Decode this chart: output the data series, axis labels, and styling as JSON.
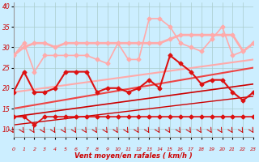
{
  "xlabel": "Vent moyen/en rafales ( km/h )",
  "background_color": "#cceeff",
  "grid_color": "#aacccc",
  "xlim": [
    0,
    23
  ],
  "ylim": [
    8,
    41
  ],
  "yticks": [
    10,
    15,
    20,
    25,
    30,
    35,
    40
  ],
  "xticks": [
    0,
    1,
    2,
    3,
    4,
    5,
    6,
    7,
    8,
    9,
    10,
    11,
    12,
    13,
    14,
    15,
    16,
    17,
    18,
    19,
    20,
    21,
    22,
    23
  ],
  "line_pink_flat": {
    "x": [
      0,
      1,
      2,
      3,
      4,
      5,
      6,
      7,
      8,
      9,
      10,
      11,
      12,
      13,
      14,
      15,
      16,
      17,
      18,
      19,
      20,
      21,
      22,
      23
    ],
    "y": [
      28,
      30,
      31,
      31,
      30,
      31,
      31,
      31,
      31,
      31,
      31,
      31,
      31,
      31,
      31,
      32,
      33,
      33,
      33,
      33,
      33,
      33,
      29,
      31
    ],
    "color": "#ffaaaa",
    "linewidth": 2.0,
    "marker": "D",
    "markersize": 2.5
  },
  "line_pink_spiky": {
    "x": [
      0,
      1,
      2,
      3,
      4,
      5,
      6,
      7,
      8,
      9,
      10,
      11,
      12,
      13,
      14,
      15,
      16,
      17,
      18,
      19,
      20,
      21,
      22,
      23
    ],
    "y": [
      28,
      31,
      24,
      28,
      28,
      28,
      28,
      28,
      27,
      26,
      31,
      27,
      27,
      37,
      37,
      35,
      31,
      30,
      29,
      32,
      35,
      28,
      29,
      31
    ],
    "color": "#ffaaaa",
    "linewidth": 1.2,
    "marker": "D",
    "markersize": 2.5
  },
  "line_red_main": {
    "x": [
      0,
      1,
      2,
      3,
      4,
      5,
      6,
      7,
      8,
      9,
      10,
      11,
      12,
      13,
      14,
      15,
      16,
      17,
      18,
      19,
      20,
      21,
      22,
      23
    ],
    "y": [
      19,
      24,
      19,
      19,
      20,
      24,
      24,
      24,
      19,
      20,
      20,
      19,
      20,
      22,
      20,
      28,
      26,
      24,
      21,
      22,
      22,
      19,
      17,
      19
    ],
    "color": "#dd1111",
    "linewidth": 1.5,
    "marker": "D",
    "markersize": 2.5
  },
  "line_red_low": {
    "x": [
      0,
      1,
      2,
      3,
      4,
      5,
      6,
      7,
      8,
      9,
      10,
      11,
      12,
      13,
      14,
      15,
      16,
      17,
      18,
      19,
      20,
      21,
      22,
      23
    ],
    "y": [
      13,
      13,
      11,
      13,
      13,
      13,
      13,
      13,
      13,
      13,
      13,
      13,
      13,
      13,
      13,
      13,
      13,
      13,
      13,
      13,
      13,
      13,
      13,
      13
    ],
    "color": "#dd1111",
    "linewidth": 1.2,
    "marker": "D",
    "markersize": 2.5
  },
  "trend_pink": {
    "x": [
      0,
      23
    ],
    "y": [
      19,
      27
    ],
    "color": "#ffaaaa",
    "linewidth": 1.5
  },
  "trend_red1": {
    "x": [
      0,
      23
    ],
    "y": [
      15,
      25
    ],
    "color": "#ee4444",
    "linewidth": 1.5
  },
  "trend_red2": {
    "x": [
      0,
      23
    ],
    "y": [
      13,
      21
    ],
    "color": "#cc0000",
    "linewidth": 1.2
  },
  "trend_red3": {
    "x": [
      0,
      23
    ],
    "y": [
      11,
      18
    ],
    "color": "#cc0000",
    "linewidth": 1.0
  },
  "wind_arrows": {
    "x": [
      0,
      1,
      2,
      3,
      4,
      5,
      6,
      7,
      8,
      9,
      10,
      11,
      12,
      13,
      14,
      15,
      16,
      17,
      18,
      19,
      20,
      21,
      22,
      23
    ],
    "color": "#cc0000"
  }
}
